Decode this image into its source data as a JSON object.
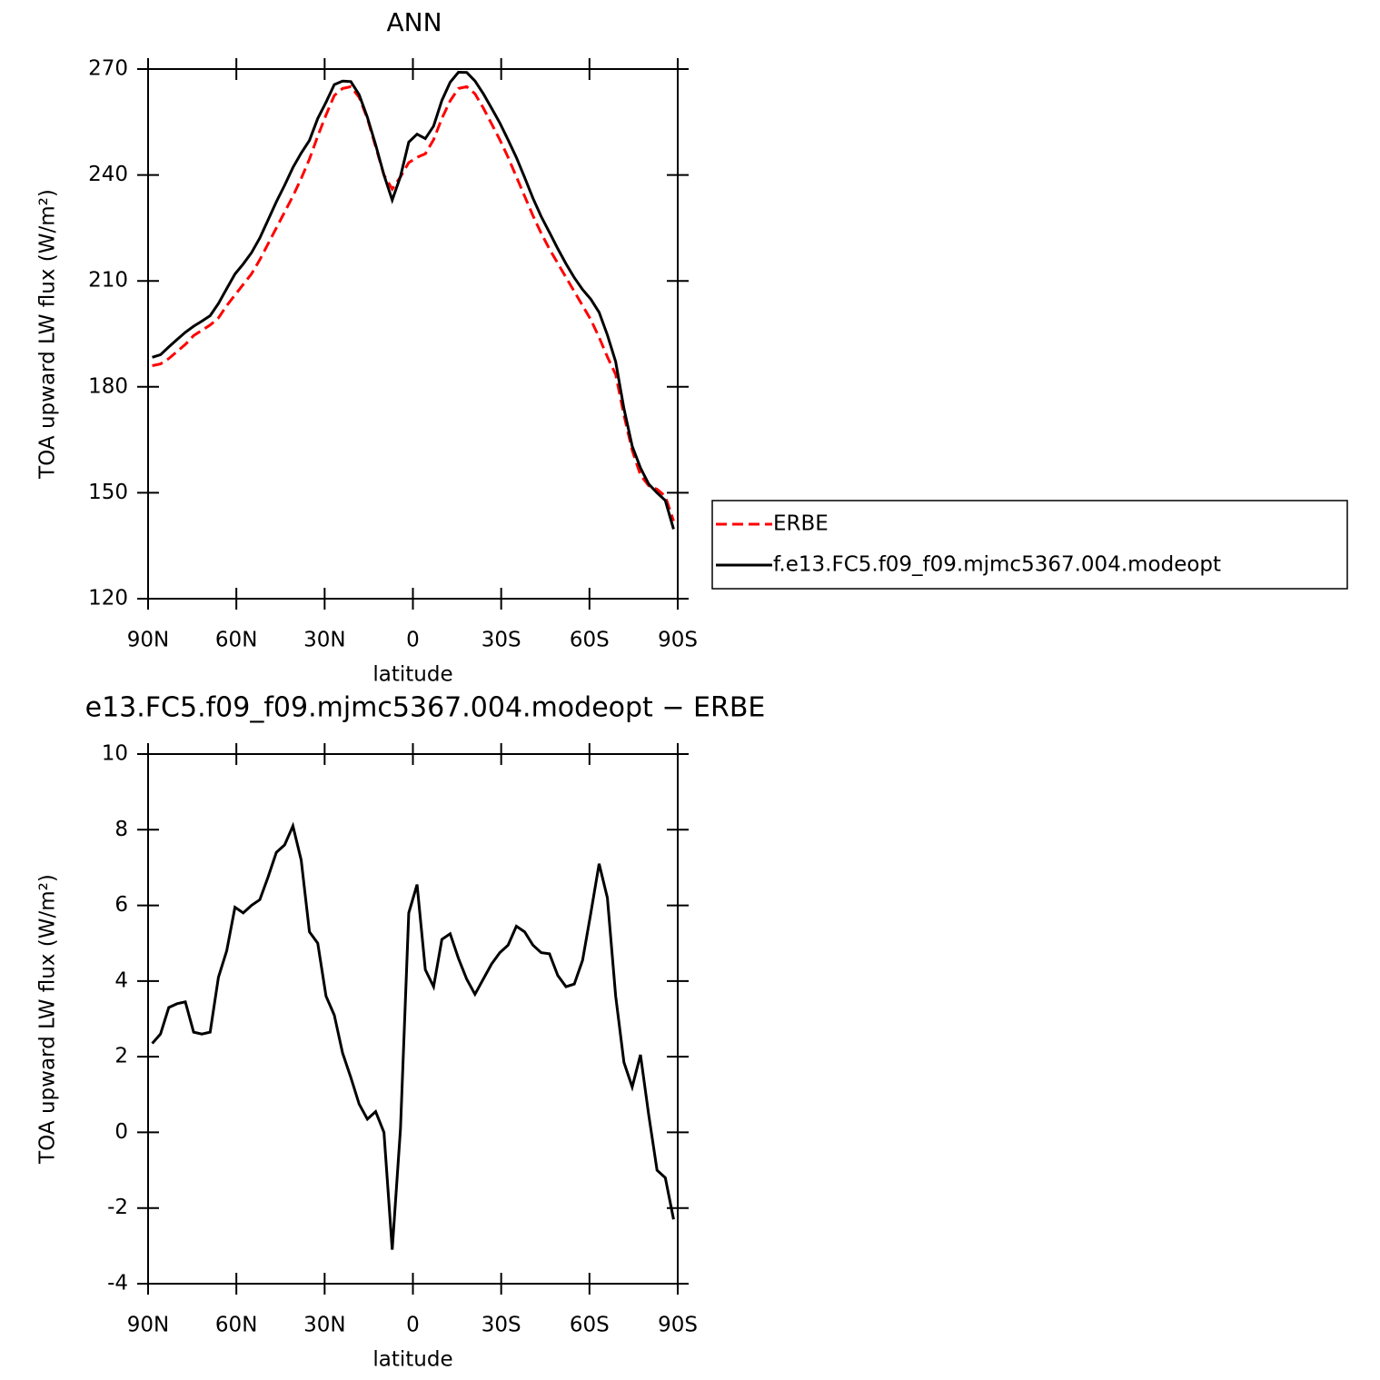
{
  "chart_data": [
    {
      "type": "line",
      "title": "ANN",
      "xlabel": "latitude",
      "ylabel": "TOA upward LW flux (W/m²)",
      "x": [
        88.59,
        85.78,
        82.97,
        80.16,
        77.34,
        74.53,
        71.72,
        68.91,
        66.09,
        63.28,
        60.47,
        57.66,
        54.84,
        52.03,
        49.22,
        46.41,
        43.59,
        40.78,
        37.97,
        35.16,
        32.34,
        29.53,
        26.72,
        23.91,
        21.09,
        18.28,
        15.47,
        12.66,
        9.84,
        7.03,
        4.22,
        1.41,
        -1.41,
        -4.22,
        -7.03,
        -9.84,
        -12.66,
        -15.47,
        -18.28,
        -21.09,
        -23.91,
        -26.72,
        -29.53,
        -32.34,
        -35.16,
        -37.97,
        -40.78,
        -43.59,
        -46.41,
        -49.22,
        -52.03,
        -54.84,
        -57.66,
        -60.47,
        -63.28,
        -66.09,
        -68.91,
        -71.72,
        -74.53,
        -77.34,
        -80.16,
        -82.97,
        -85.78,
        -88.59
      ],
      "series": [
        {
          "name": "ERBE",
          "color": "#ff0000",
          "linestyle": "dashed",
          "values": [
            186,
            186.5,
            188,
            190,
            192,
            194.5,
            196,
            197.5,
            199.5,
            203,
            206,
            209,
            212,
            216,
            220.5,
            225,
            229.5,
            234,
            239,
            244.5,
            251,
            257,
            262.5,
            264.5,
            265,
            262,
            256,
            248,
            240,
            236,
            239.5,
            243.5,
            245,
            246,
            250,
            256,
            261,
            264.5,
            265,
            263,
            259,
            254.5,
            250,
            245,
            239.5,
            234,
            228.5,
            223.5,
            219,
            215,
            211,
            207,
            203,
            199,
            194,
            188.5,
            183.5,
            172,
            162,
            155,
            152,
            151,
            149,
            142
          ]
        },
        {
          "name": "f.e13.FC5.f09_f09.mjmc5367.004.modeopt",
          "color": "#000000",
          "linestyle": "solid",
          "values": [
            188.35,
            189.1,
            191.3,
            193.4,
            195.45,
            197.15,
            198.6,
            200.15,
            203.6,
            207.8,
            211.95,
            214.8,
            218,
            222.15,
            227.25,
            232.4,
            237.1,
            242.1,
            246.2,
            249.8,
            256,
            260.6,
            265.6,
            266.6,
            266.45,
            262.75,
            256.35,
            248.55,
            240,
            232.9,
            239.6,
            249.3,
            251.55,
            250.3,
            253.85,
            261.1,
            266.25,
            269.1,
            269.05,
            266.65,
            263.05,
            258.95,
            254.75,
            249.95,
            244.95,
            239.3,
            233.45,
            228.25,
            223.72,
            219.15,
            214.85,
            210.92,
            207.55,
            204.8,
            201.1,
            194.7,
            187.1,
            173.85,
            163.2,
            157.05,
            152.45,
            150,
            147.8,
            139.7
          ]
        }
      ],
      "xlim": [
        90,
        -90
      ],
      "xticks": [
        {
          "value": 90,
          "label": "90N"
        },
        {
          "value": 60,
          "label": "60N"
        },
        {
          "value": 30,
          "label": "30N"
        },
        0,
        {
          "value": -30,
          "label": "30S"
        },
        {
          "value": -60,
          "label": "60S"
        },
        {
          "value": -90,
          "label": "90S"
        }
      ],
      "ylim": [
        120,
        270
      ],
      "yticks": [
        120,
        150,
        180,
        210,
        240,
        270
      ],
      "legend": "right"
    },
    {
      "type": "line",
      "title": "e13.FC5.f09_f09.mjmc5367.004.modeopt − ERBE",
      "xlabel": "latitude",
      "ylabel": "TOA upward LW flux (W/m²)",
      "x": [
        88.59,
        85.78,
        82.97,
        80.16,
        77.34,
        74.53,
        71.72,
        68.91,
        66.09,
        63.28,
        60.47,
        57.66,
        54.84,
        52.03,
        49.22,
        46.41,
        43.59,
        40.78,
        37.97,
        35.16,
        32.34,
        29.53,
        26.72,
        23.91,
        21.09,
        18.28,
        15.47,
        12.66,
        9.84,
        7.03,
        4.22,
        1.41,
        -1.41,
        -4.22,
        -7.03,
        -9.84,
        -12.66,
        -15.47,
        -18.28,
        -21.09,
        -23.91,
        -26.72,
        -29.53,
        -32.34,
        -35.16,
        -37.97,
        -40.78,
        -43.59,
        -46.41,
        -49.22,
        -52.03,
        -54.84,
        -57.66,
        -60.47,
        -63.28,
        -66.09,
        -68.91,
        -71.72,
        -74.53,
        -77.34,
        -80.16,
        -82.97,
        -85.78,
        -88.59
      ],
      "values": [
        2.35,
        2.6,
        3.3,
        3.4,
        3.45,
        2.65,
        2.6,
        2.65,
        4.1,
        4.8,
        5.95,
        5.8,
        6.0,
        6.15,
        6.75,
        7.4,
        7.6,
        8.1,
        7.2,
        5.3,
        5.0,
        3.6,
        3.1,
        2.1,
        1.45,
        0.75,
        0.35,
        0.55,
        0.0,
        -3.1,
        0.1,
        5.8,
        6.55,
        4.3,
        3.85,
        5.1,
        5.25,
        4.6,
        4.05,
        3.65,
        4.05,
        4.45,
        4.75,
        4.95,
        5.45,
        5.3,
        4.95,
        4.75,
        4.72,
        4.15,
        3.85,
        3.92,
        4.55,
        5.8,
        7.1,
        6.2,
        3.6,
        1.85,
        1.2,
        2.05,
        0.45,
        -1.0,
        -1.2,
        -2.3
      ],
      "color": "#000000",
      "xlim": [
        90,
        -90
      ],
      "xticks": [
        {
          "value": 90,
          "label": "90N"
        },
        {
          "value": 60,
          "label": "60N"
        },
        {
          "value": 30,
          "label": "30N"
        },
        0,
        {
          "value": -30,
          "label": "30S"
        },
        {
          "value": -60,
          "label": "60S"
        },
        {
          "value": -90,
          "label": "90S"
        }
      ],
      "ylim": [
        -4,
        10
      ],
      "yticks": [
        -4,
        -2,
        0,
        2,
        4,
        6,
        8,
        10
      ]
    }
  ]
}
